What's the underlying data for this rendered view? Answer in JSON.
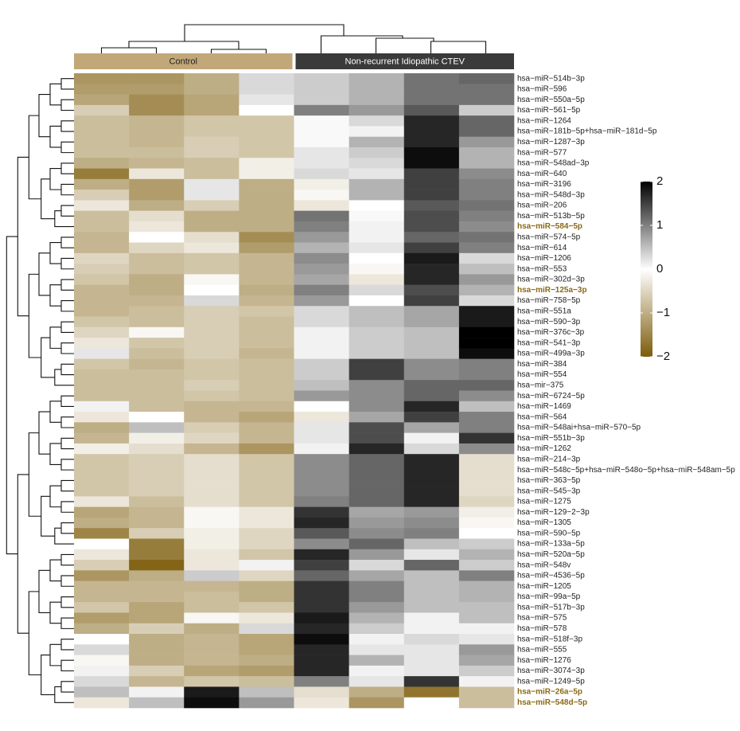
{
  "chart_data": {
    "type": "heatmap",
    "groups": [
      {
        "name": "Control",
        "color": "#c2a878",
        "text_color": "#222222",
        "columns": 4
      },
      {
        "name": "Non-recurrent Idiopathic CTEV",
        "color": "#3a3a3a",
        "text_color": "#ffffff",
        "columns": 4
      }
    ],
    "rows": [
      {
        "name": "hsa−miR−514b−3p"
      },
      {
        "name": "hsa−miR−596"
      },
      {
        "name": "hsa−miR−550a−5p"
      },
      {
        "name": "hsa−miR−561−5p"
      },
      {
        "name": "hsa−miR−1264"
      },
      {
        "name": "hsa−miR−181b−5p+hsa−miR−181d−5p"
      },
      {
        "name": "hsa−miR−1287−3p"
      },
      {
        "name": "hsa−miR−577"
      },
      {
        "name": "hsa−miR−548ad−3p"
      },
      {
        "name": "hsa−miR−640"
      },
      {
        "name": "hsa−miR−3196"
      },
      {
        "name": "hsa−miR−548d−3p"
      },
      {
        "name": "hsa−miR−206"
      },
      {
        "name": "hsa−miR−513b−5p"
      },
      {
        "name": "hsa−miR−584−5p",
        "highlight": true
      },
      {
        "name": "hsa−miR−574−5p"
      },
      {
        "name": "hsa−miR−614"
      },
      {
        "name": "hsa−miR−1206"
      },
      {
        "name": "hsa−miR−553"
      },
      {
        "name": "hsa−miR−302d−3p"
      },
      {
        "name": "hsa−miR−125a−3p",
        "highlight": true
      },
      {
        "name": "hsa−miR−758−5p"
      },
      {
        "name": "hsa−miR−551a"
      },
      {
        "name": "hsa−miR−590−3p"
      },
      {
        "name": "hsa−miR−376c−3p"
      },
      {
        "name": "hsa−miR−541−3p"
      },
      {
        "name": "hsa−miR−499a−3p"
      },
      {
        "name": "hsa−miR−384"
      },
      {
        "name": "hsa−miR−554"
      },
      {
        "name": "hsa−mir−375"
      },
      {
        "name": "hsa−miR−6724−5p"
      },
      {
        "name": "hsa−miR−1469"
      },
      {
        "name": "hsa−miR−564"
      },
      {
        "name": "hsa−miR−548ai+hsa−miR−570−5p"
      },
      {
        "name": "hsa−miR−551b−3p"
      },
      {
        "name": "hsa−miR−1262"
      },
      {
        "name": "hsa−miR−214−3p"
      },
      {
        "name": "hsa−miR−548c−5p+hsa−miR−548o−5p+hsa−miR−548am−5p"
      },
      {
        "name": "hsa−miR−363−5p"
      },
      {
        "name": "hsa−miR−545−3p"
      },
      {
        "name": "hsa−miR−1275"
      },
      {
        "name": "hsa−miR−129−2−3p"
      },
      {
        "name": "hsa−miR−1305"
      },
      {
        "name": "hsa−miR−590−5p"
      },
      {
        "name": "hsa−miR−133a−5p"
      },
      {
        "name": "hsa−miR−520a−5p"
      },
      {
        "name": "hsa−miR−548v"
      },
      {
        "name": "hsa−miR−4536−5p"
      },
      {
        "name": "hsa−miR−1205"
      },
      {
        "name": "hsa−miR−99a−5p"
      },
      {
        "name": "hsa−miR−517b−3p"
      },
      {
        "name": "hsa−miR−575"
      },
      {
        "name": "hsa−miR−578"
      },
      {
        "name": "hsa−miR−518f−3p"
      },
      {
        "name": "hsa−miR−555"
      },
      {
        "name": "hsa−miR−1276"
      },
      {
        "name": "hsa−miR−3074−3p"
      },
      {
        "name": "hsa−miR−1249−5p"
      },
      {
        "name": "hsa−miR−26a−5p",
        "highlight": true
      },
      {
        "name": "hsa−miR−548d−5p",
        "highlight": true
      }
    ],
    "highlight_color": "#8b6914",
    "values": [
      [
        -1.3,
        -1.3,
        -1.0,
        0.3,
        0.4,
        0.6,
        1.1,
        1.2
      ],
      [
        -1.2,
        -1.2,
        -1.0,
        0.3,
        0.4,
        0.6,
        1.1,
        1.1
      ],
      [
        -1.1,
        -1.4,
        -1.1,
        0.2,
        0.4,
        0.6,
        1.1,
        1.1
      ],
      [
        -0.6,
        -1.4,
        -1.1,
        0,
        1.0,
        0.8,
        1.3,
        0.4
      ],
      [
        -0.8,
        -0.9,
        -0.7,
        -0.7,
        0.05,
        0.3,
        1.7,
        1.2
      ],
      [
        -0.8,
        -0.9,
        -0.7,
        -0.7,
        0.05,
        0.1,
        1.7,
        1.2
      ],
      [
        -0.8,
        -0.9,
        -0.6,
        -0.7,
        0.05,
        0.6,
        1.7,
        0.8
      ],
      [
        -0.8,
        -0.8,
        -0.6,
        -0.7,
        0.2,
        0.4,
        1.9,
        0.6
      ],
      [
        -1.0,
        -0.9,
        -0.8,
        -0.2,
        0.2,
        0.3,
        1.9,
        0.6
      ],
      [
        -1.6,
        -0.3,
        -0.8,
        -0.2,
        0.3,
        0.2,
        1.5,
        0.9
      ],
      [
        -1.0,
        -1.2,
        0.2,
        -1.0,
        -0.2,
        0.6,
        1.5,
        1.0
      ],
      [
        -0.6,
        -1.2,
        0.2,
        -1.0,
        -0.1,
        0.6,
        1.5,
        1.0
      ],
      [
        -0.3,
        -1.0,
        -0.6,
        -1.0,
        -0.3,
        0,
        1.3,
        1.1
      ],
      [
        -0.8,
        -0.4,
        -1.0,
        -1.0,
        1.1,
        0.05,
        1.4,
        1.0
      ],
      [
        -0.8,
        -0.3,
        -1.0,
        -1.0,
        1.0,
        0.1,
        1.4,
        0.9
      ],
      [
        -0.9,
        0,
        -0.4,
        -1.4,
        0.8,
        0.1,
        1.2,
        1.1
      ],
      [
        -0.9,
        -0.5,
        -0.3,
        -1.2,
        0.6,
        0.2,
        1.5,
        1.0
      ],
      [
        -0.5,
        -0.8,
        -0.7,
        -0.9,
        0.9,
        0,
        1.8,
        0.3
      ],
      [
        -0.6,
        -0.8,
        -0.7,
        -0.9,
        0.8,
        -0.1,
        1.7,
        0.5
      ],
      [
        -0.7,
        -1.0,
        -0.1,
        -0.9,
        0.7,
        -0.3,
        1.7,
        0.8
      ],
      [
        -0.9,
        -1.0,
        0,
        -1.0,
        1.0,
        0.3,
        1.4,
        0.6
      ],
      [
        -0.9,
        -0.9,
        0.3,
        -0.9,
        0.8,
        0,
        1.5,
        0.3
      ],
      [
        -0.9,
        -0.8,
        -0.6,
        -0.7,
        0.3,
        0.5,
        0.7,
        1.8
      ],
      [
        -0.7,
        -0.8,
        -0.6,
        -0.8,
        0.3,
        0.5,
        0.7,
        1.8
      ],
      [
        -0.5,
        -0.1,
        -0.6,
        -0.8,
        0.1,
        0.4,
        0.5,
        2.0
      ],
      [
        -0.3,
        -0.7,
        -0.6,
        -0.8,
        0.1,
        0.4,
        0.5,
        2.0
      ],
      [
        0.2,
        -0.8,
        -0.6,
        -0.9,
        0.1,
        0.4,
        0.5,
        1.9
      ],
      [
        -0.7,
        -0.9,
        -0.7,
        -0.8,
        0.4,
        1.5,
        0.9,
        1.0
      ],
      [
        -0.8,
        -0.8,
        -0.7,
        -0.8,
        0.4,
        1.5,
        0.9,
        1.0
      ],
      [
        -0.8,
        -0.8,
        -0.6,
        -0.8,
        0.5,
        0.9,
        1.2,
        1.2
      ],
      [
        -0.8,
        -0.8,
        -0.7,
        -0.8,
        0.8,
        0.9,
        1.2,
        0.9
      ],
      [
        0.1,
        -0.8,
        -0.9,
        -0.9,
        0,
        0.9,
        1.7,
        0.5
      ],
      [
        -0.3,
        0,
        -0.9,
        -1.1,
        -0.3,
        0.7,
        1.5,
        1.0
      ],
      [
        -1.0,
        0.5,
        -0.6,
        -0.9,
        0.2,
        1.4,
        0.7,
        1.0
      ],
      [
        -0.9,
        -0.2,
        -0.5,
        -0.9,
        0.2,
        1.4,
        0.1,
        1.6
      ],
      [
        -0.2,
        -0.4,
        -0.9,
        -1.3,
        0.1,
        1.7,
        0.3,
        0.9
      ],
      [
        -0.7,
        -0.6,
        -0.4,
        -0.7,
        0.9,
        1.2,
        1.7,
        -0.4
      ],
      [
        -0.7,
        -0.6,
        -0.4,
        -0.7,
        0.9,
        1.2,
        1.7,
        -0.4
      ],
      [
        -0.7,
        -0.6,
        -0.4,
        -0.7,
        0.9,
        1.2,
        1.7,
        -0.4
      ],
      [
        -0.7,
        -0.6,
        -0.4,
        -0.7,
        0.9,
        1.2,
        1.7,
        -0.4
      ],
      [
        -0.3,
        -0.8,
        -0.4,
        -0.7,
        1.0,
        1.2,
        1.7,
        -0.5
      ],
      [
        -1.1,
        -0.9,
        -0.1,
        -0.3,
        1.6,
        0.7,
        0.8,
        -0.2
      ],
      [
        -1.0,
        -0.9,
        -0.1,
        -0.3,
        1.7,
        0.8,
        0.9,
        -0.1
      ],
      [
        -1.5,
        -0.6,
        -0.2,
        -0.5,
        1.3,
        0.9,
        1.0,
        0
      ],
      [
        0,
        -1.6,
        -0.2,
        -0.5,
        0.9,
        1.2,
        0.5,
        0.4
      ],
      [
        -0.3,
        -1.6,
        -0.3,
        -0.7,
        1.7,
        0.8,
        0.2,
        0.6
      ],
      [
        -0.6,
        -1.9,
        -0.3,
        0.1,
        1.5,
        0.3,
        1.2,
        0.4
      ],
      [
        -1.3,
        -1.0,
        0.4,
        -0.5,
        1.2,
        0.7,
        0.5,
        1.0
      ],
      [
        -0.9,
        -0.9,
        -0.9,
        -1.0,
        1.6,
        1.0,
        0.5,
        0.6
      ],
      [
        -0.9,
        -0.9,
        -0.8,
        -1.0,
        1.6,
        1.0,
        0.5,
        0.6
      ],
      [
        -0.7,
        -1.1,
        -0.8,
        -0.7,
        1.6,
        0.8,
        0.5,
        0.5
      ],
      [
        -1.2,
        -1.1,
        -0.1,
        -0.3,
        1.8,
        0.6,
        0.1,
        0.5
      ],
      [
        -1.0,
        -0.6,
        -1.0,
        0.3,
        1.7,
        0.4,
        0.1,
        0.1
      ],
      [
        0,
        -1.0,
        -0.9,
        -1.1,
        1.9,
        0.1,
        0.3,
        0.2
      ],
      [
        0.3,
        -1.0,
        -0.9,
        -1.1,
        1.7,
        0.2,
        0.2,
        0.8
      ],
      [
        -0.1,
        -1.0,
        -0.9,
        -1.0,
        1.7,
        0.6,
        0.2,
        0.7
      ],
      [
        0.1,
        -0.6,
        -1.1,
        -1.2,
        1.7,
        0.1,
        0.2,
        0.4
      ],
      [
        0.3,
        -0.9,
        -0.7,
        -0.8,
        1.0,
        0.2,
        1.6,
        0.1
      ],
      [
        0.5,
        0.1,
        1.8,
        0.5,
        -0.4,
        -1.0,
        -1.7,
        -0.8
      ],
      [
        -0.3,
        0.5,
        1.9,
        0.8,
        -0.3,
        -1.3,
        0,
        -0.8
      ]
    ],
    "colors": {
      "low": "#7d5c0a",
      "mid": "#ffffff",
      "high": "#000000"
    },
    "zlim": [
      -2,
      2
    ],
    "zticks": [
      2,
      1,
      0,
      {
        "value": -1,
        "label": "−1"
      },
      {
        "value": -2,
        "label": "−2"
      }
    ]
  }
}
